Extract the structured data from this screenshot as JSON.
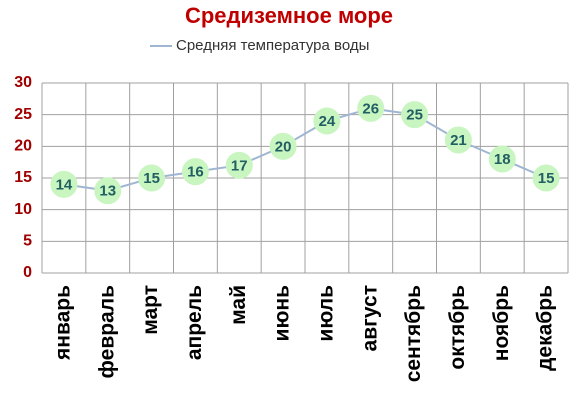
{
  "chart_data": {
    "type": "line",
    "title": "Средиземное море",
    "categories": [
      "январь",
      "февраль",
      "март",
      "апрель",
      "май",
      "июнь",
      "июль",
      "август",
      "сентябрь",
      "октябрь",
      "ноябрь",
      "декабрь"
    ],
    "series": [
      {
        "name": "Средняя температура воды",
        "color": "#9fb6d3",
        "values": [
          14,
          13,
          15,
          16,
          17,
          20,
          24,
          26,
          25,
          21,
          18,
          15
        ]
      }
    ],
    "ylim": [
      0,
      30
    ],
    "yticks": [
      0,
      5,
      10,
      15,
      20,
      25,
      30
    ],
    "grid": true,
    "legend": "top"
  }
}
